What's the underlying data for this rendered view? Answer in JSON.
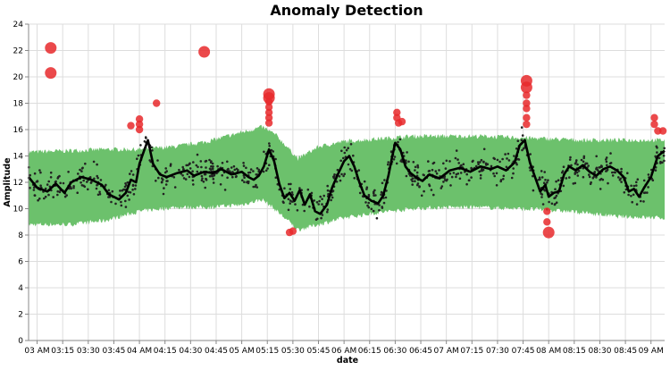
{
  "chart_data": {
    "type": "scatter",
    "title": "Anomaly Detection",
    "xlabel": "date",
    "ylabel": "Amplitude",
    "ylim": [
      0,
      24
    ],
    "yticks": [
      0,
      2,
      4,
      6,
      8,
      10,
      12,
      14,
      16,
      18,
      20,
      22,
      24
    ],
    "xlim_minutes": [
      175,
      548
    ],
    "xticks": [
      {
        "label": "03 AM",
        "minutes": 180
      },
      {
        "label": "03:15",
        "minutes": 195
      },
      {
        "label": "03:30",
        "minutes": 210
      },
      {
        "label": "03:45",
        "minutes": 225
      },
      {
        "label": "04 AM",
        "minutes": 240
      },
      {
        "label": "04:15",
        "minutes": 255
      },
      {
        "label": "04:30",
        "minutes": 270
      },
      {
        "label": "04:45",
        "minutes": 285
      },
      {
        "label": "05 AM",
        "minutes": 300
      },
      {
        "label": "05:15",
        "minutes": 315
      },
      {
        "label": "05:30",
        "minutes": 330
      },
      {
        "label": "05:45",
        "minutes": 345
      },
      {
        "label": "06 AM",
        "minutes": 360
      },
      {
        "label": "06:15",
        "minutes": 375
      },
      {
        "label": "06:30",
        "minutes": 390
      },
      {
        "label": "06:45",
        "minutes": 405
      },
      {
        "label": "07 AM",
        "minutes": 420
      },
      {
        "label": "07:15",
        "minutes": 435
      },
      {
        "label": "07:30",
        "minutes": 450
      },
      {
        "label": "07:45",
        "minutes": 465
      },
      {
        "label": "08 AM",
        "minutes": 480
      },
      {
        "label": "08:15",
        "minutes": 495
      },
      {
        "label": "08:30",
        "minutes": 510
      },
      {
        "label": "08:45",
        "minutes": 525
      },
      {
        "label": "09 AM",
        "minutes": 540
      }
    ],
    "grid": true,
    "colors": {
      "band": "#6cc16c",
      "line": "#000000",
      "points": "#222222",
      "anomaly": "#e8292b",
      "grid": "#dddddd"
    },
    "band": {
      "x": [
        175,
        200,
        220,
        240,
        260,
        280,
        300,
        312,
        320,
        333,
        345,
        360,
        380,
        400,
        420,
        440,
        460,
        480,
        500,
        520,
        548
      ],
      "lower": [
        8.8,
        8.8,
        9.1,
        9.8,
        10.1,
        10.1,
        10.3,
        10.7,
        9.9,
        8.4,
        8.8,
        9.3,
        9.7,
        10.0,
        10.1,
        10.1,
        10.0,
        9.9,
        9.7,
        9.4,
        9.3
      ],
      "upper": [
        14.3,
        14.4,
        14.5,
        14.5,
        14.7,
        15.1,
        15.8,
        16.2,
        15.6,
        13.8,
        14.7,
        15.1,
        15.3,
        15.5,
        15.5,
        15.5,
        15.4,
        15.3,
        15.2,
        15.2,
        15.2
      ]
    },
    "line": {
      "x": [
        175,
        180,
        186,
        191,
        196,
        200,
        206,
        212,
        218,
        222,
        228,
        232,
        235,
        238,
        240,
        243,
        245,
        248,
        252,
        256,
        262,
        268,
        272,
        278,
        283,
        288,
        294,
        300,
        304,
        307,
        310,
        313,
        316,
        319,
        322,
        325,
        328,
        331,
        334,
        337,
        340,
        343,
        346,
        350,
        353,
        356,
        360,
        363,
        366,
        369,
        372,
        376,
        380,
        383,
        386,
        388,
        390,
        393,
        396,
        399,
        402,
        406,
        410,
        416,
        422,
        428,
        434,
        440,
        446,
        450,
        455,
        460,
        463,
        466,
        469,
        472,
        475,
        478,
        480,
        483,
        486,
        489,
        492,
        496,
        500,
        504,
        508,
        512,
        516,
        520,
        524,
        527,
        530,
        533,
        536,
        540,
        544,
        548
      ],
      "y": [
        12.4,
        11.6,
        11.3,
        11.9,
        11.2,
        12.0,
        12.4,
        12.2,
        11.8,
        11.1,
        10.7,
        11.2,
        12.2,
        12.0,
        13.4,
        14.5,
        15.2,
        13.4,
        12.6,
        12.4,
        12.7,
        12.9,
        12.5,
        12.8,
        12.7,
        13.0,
        12.6,
        12.8,
        12.4,
        12.2,
        12.5,
        13.2,
        14.5,
        13.6,
        11.9,
        10.8,
        11.2,
        10.6,
        11.4,
        10.3,
        11.1,
        9.8,
        9.6,
        10.3,
        11.6,
        12.5,
        13.6,
        14.0,
        13.2,
        12.0,
        11.0,
        10.6,
        10.4,
        11.0,
        12.5,
        13.8,
        15.0,
        14.5,
        13.2,
        12.7,
        12.4,
        12.1,
        12.6,
        12.3,
        12.9,
        13.1,
        12.8,
        13.2,
        13.0,
        13.2,
        12.9,
        13.5,
        14.8,
        15.2,
        13.5,
        12.4,
        11.3,
        11.8,
        10.9,
        11.2,
        11.3,
        12.6,
        13.2,
        12.9,
        13.3,
        12.8,
        12.5,
        13.0,
        13.2,
        12.9,
        12.4,
        11.3,
        11.5,
        10.9,
        11.6,
        12.4,
        14.0,
        14.4
      ]
    },
    "anomalies": [
      {
        "x": 188,
        "y": 22.2,
        "size": "large"
      },
      {
        "x": 188,
        "y": 20.3,
        "size": "large"
      },
      {
        "x": 278,
        "y": 21.9,
        "size": "large"
      },
      {
        "x": 235,
        "y": 16.3,
        "size": "medium"
      },
      {
        "x": 240,
        "y": 16.8,
        "size": "medium"
      },
      {
        "x": 240,
        "y": 16.4,
        "size": "medium"
      },
      {
        "x": 240,
        "y": 16.0,
        "size": "medium"
      },
      {
        "x": 250,
        "y": 18.0,
        "size": "medium"
      },
      {
        "x": 316,
        "y": 18.7,
        "size": "large"
      },
      {
        "x": 316,
        "y": 18.4,
        "size": "large"
      },
      {
        "x": 316,
        "y": 18.1,
        "size": "medium"
      },
      {
        "x": 316,
        "y": 17.7,
        "size": "medium"
      },
      {
        "x": 316,
        "y": 17.3,
        "size": "medium"
      },
      {
        "x": 316,
        "y": 16.9,
        "size": "medium"
      },
      {
        "x": 316,
        "y": 16.5,
        "size": "medium"
      },
      {
        "x": 328,
        "y": 8.2,
        "size": "medium"
      },
      {
        "x": 330,
        "y": 8.3,
        "size": "medium"
      },
      {
        "x": 391,
        "y": 17.3,
        "size": "medium"
      },
      {
        "x": 391,
        "y": 16.9,
        "size": "medium"
      },
      {
        "x": 392,
        "y": 16.5,
        "size": "medium"
      },
      {
        "x": 394,
        "y": 16.6,
        "size": "medium"
      },
      {
        "x": 467,
        "y": 19.7,
        "size": "large"
      },
      {
        "x": 467,
        "y": 19.2,
        "size": "large"
      },
      {
        "x": 467,
        "y": 18.6,
        "size": "medium"
      },
      {
        "x": 467,
        "y": 18.0,
        "size": "medium"
      },
      {
        "x": 467,
        "y": 17.6,
        "size": "medium"
      },
      {
        "x": 467,
        "y": 16.9,
        "size": "medium"
      },
      {
        "x": 467,
        "y": 16.4,
        "size": "medium"
      },
      {
        "x": 479,
        "y": 9.8,
        "size": "medium"
      },
      {
        "x": 479,
        "y": 9.0,
        "size": "medium"
      },
      {
        "x": 480,
        "y": 8.2,
        "size": "large"
      },
      {
        "x": 542,
        "y": 16.9,
        "size": "medium"
      },
      {
        "x": 542,
        "y": 16.4,
        "size": "medium"
      },
      {
        "x": 544,
        "y": 15.9,
        "size": "medium"
      },
      {
        "x": 547,
        "y": 15.9,
        "size": "medium"
      }
    ]
  }
}
